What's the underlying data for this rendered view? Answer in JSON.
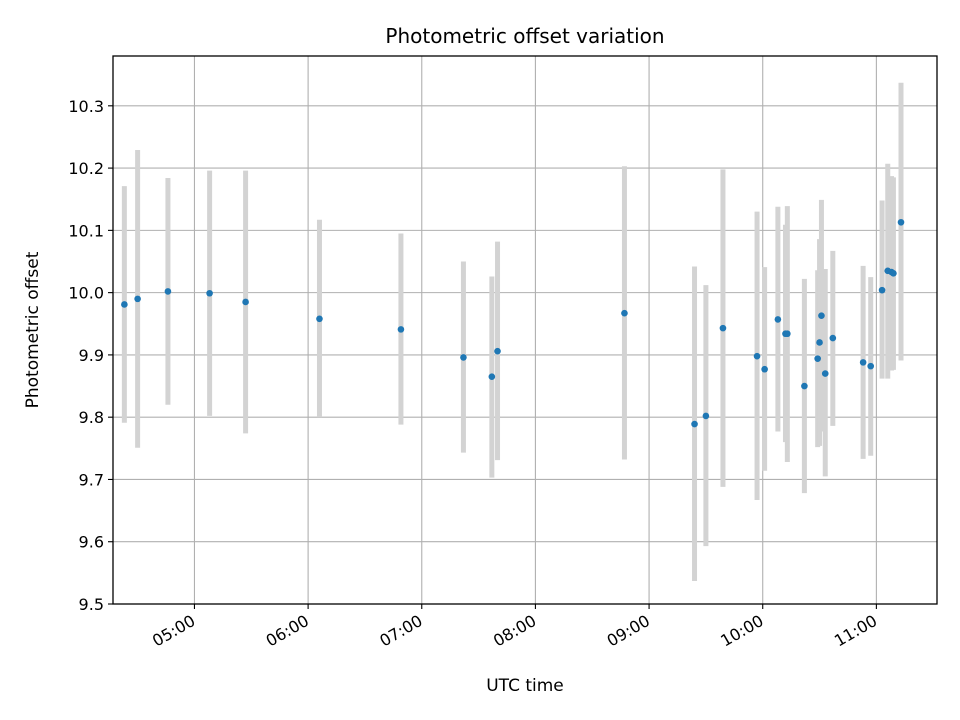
{
  "chart_data": {
    "type": "scatter",
    "title": "Photometric offset variation",
    "xlabel": "UTC time",
    "ylabel": "Photometric offset",
    "x_unit": "UTC time (HH:MM)",
    "xlim": [
      "04:17",
      "11:32"
    ],
    "ylim": [
      9.5,
      10.38
    ],
    "x_ticks": [
      "05:00",
      "06:00",
      "07:00",
      "08:00",
      "09:00",
      "10:00",
      "11:00"
    ],
    "y_ticks": [
      "9.5",
      "9.6",
      "9.7",
      "9.8",
      "9.9",
      "10.0",
      "10.1",
      "10.2",
      "10.3"
    ],
    "grid": true,
    "legend": "none",
    "colors": {
      "marker": "#1f77b4",
      "errorbar": "#d3d3d3",
      "grid": "#b0b0b0",
      "axes": "#000000"
    },
    "series": [
      {
        "points": [
          {
            "x": "04:23",
            "y": 9.981,
            "ylow": 9.791,
            "yhigh": 10.171
          },
          {
            "x": "04:30",
            "y": 9.99,
            "ylow": 9.751,
            "yhigh": 10.229
          },
          {
            "x": "04:46",
            "y": 10.002,
            "ylow": 9.82,
            "yhigh": 10.184
          },
          {
            "x": "05:08",
            "y": 9.999,
            "ylow": 9.802,
            "yhigh": 10.196
          },
          {
            "x": "05:27",
            "y": 9.985,
            "ylow": 9.774,
            "yhigh": 10.196
          },
          {
            "x": "06:06",
            "y": 9.958,
            "ylow": 9.8,
            "yhigh": 10.117
          },
          {
            "x": "06:49",
            "y": 9.941,
            "ylow": 9.788,
            "yhigh": 10.095
          },
          {
            "x": "07:22",
            "y": 9.896,
            "ylow": 9.743,
            "yhigh": 10.05
          },
          {
            "x": "07:37",
            "y": 9.865,
            "ylow": 9.703,
            "yhigh": 10.026
          },
          {
            "x": "07:40",
            "y": 9.906,
            "ylow": 9.731,
            "yhigh": 10.082
          },
          {
            "x": "08:47",
            "y": 9.967,
            "ylow": 9.732,
            "yhigh": 10.203
          },
          {
            "x": "09:24",
            "y": 9.789,
            "ylow": 9.537,
            "yhigh": 10.042
          },
          {
            "x": "09:30",
            "y": 9.802,
            "ylow": 9.593,
            "yhigh": 10.012
          },
          {
            "x": "09:39",
            "y": 9.943,
            "ylow": 9.688,
            "yhigh": 10.198
          },
          {
            "x": "09:57",
            "y": 9.898,
            "ylow": 9.667,
            "yhigh": 10.13
          },
          {
            "x": "10:01",
            "y": 9.877,
            "ylow": 9.714,
            "yhigh": 10.041
          },
          {
            "x": "10:08",
            "y": 9.957,
            "ylow": 9.777,
            "yhigh": 10.138
          },
          {
            "x": "10:12",
            "y": 9.934,
            "ylow": 9.76,
            "yhigh": 10.109
          },
          {
            "x": "10:13",
            "y": 9.934,
            "ylow": 9.728,
            "yhigh": 10.139
          },
          {
            "x": "10:22",
            "y": 9.85,
            "ylow": 9.678,
            "yhigh": 10.022
          },
          {
            "x": "10:29",
            "y": 9.894,
            "ylow": 9.752,
            "yhigh": 10.036
          },
          {
            "x": "10:30",
            "y": 9.92,
            "ylow": 9.754,
            "yhigh": 10.086
          },
          {
            "x": "10:31",
            "y": 9.963,
            "ylow": 9.777,
            "yhigh": 10.149
          },
          {
            "x": "10:33",
            "y": 9.87,
            "ylow": 9.705,
            "yhigh": 10.038
          },
          {
            "x": "10:37",
            "y": 9.927,
            "ylow": 9.786,
            "yhigh": 10.067
          },
          {
            "x": "10:53",
            "y": 9.888,
            "ylow": 9.733,
            "yhigh": 10.043
          },
          {
            "x": "10:57",
            "y": 9.882,
            "ylow": 9.738,
            "yhigh": 10.025
          },
          {
            "x": "11:03",
            "y": 10.004,
            "ylow": 9.862,
            "yhigh": 10.148
          },
          {
            "x": "11:06",
            "y": 10.035,
            "ylow": 9.862,
            "yhigh": 10.207
          },
          {
            "x": "11:08",
            "y": 10.033,
            "ylow": 9.875,
            "yhigh": 10.187
          },
          {
            "x": "11:09",
            "y": 10.031,
            "ylow": 9.876,
            "yhigh": 10.185
          },
          {
            "x": "11:13",
            "y": 10.113,
            "ylow": 9.891,
            "yhigh": 10.337
          }
        ]
      }
    ]
  }
}
